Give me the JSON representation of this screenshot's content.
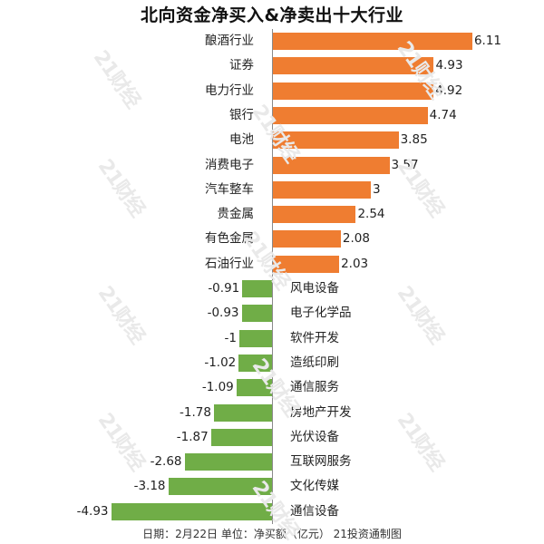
{
  "chart_data": {
    "type": "bar",
    "orientation": "horizontal",
    "title": "北向资金净买入&净卖出十大行业",
    "xlabel": "",
    "ylabel": "",
    "unit": "净买额（亿元）",
    "categories": [
      "酿酒行业",
      "证券",
      "电力行业",
      "银行",
      "电池",
      "消费电子",
      "汽车整车",
      "贵金属",
      "有色金属",
      "石油行业",
      "风电设备",
      "电子化学品",
      "软件开发",
      "造纸印刷",
      "通信服务",
      "房地产开发",
      "光伏设备",
      "互联网服务",
      "文化传媒",
      "通信设备"
    ],
    "values": [
      6.11,
      4.93,
      4.92,
      4.74,
      3.85,
      3.57,
      3,
      2.54,
      2.08,
      2.03,
      -0.91,
      -0.93,
      -1,
      -1.02,
      -1.09,
      -1.78,
      -1.87,
      -2.68,
      -3.18,
      -4.93
    ],
    "value_labels": [
      "6.11",
      "4.93",
      "4.92",
      "4.74",
      "3.85",
      "3.57",
      "3",
      "2.54",
      "2.08",
      "2.03",
      "-0.91",
      "-0.93",
      "-1",
      "-1.02",
      "-1.09",
      "-1.78",
      "-1.87",
      "-2.68",
      "-3.18",
      "-4.93"
    ],
    "series": [
      {
        "name": "净买入",
        "color": "#ef7d31"
      },
      {
        "name": "净卖出",
        "color": "#70ad47"
      }
    ],
    "grid": false,
    "legend": "none",
    "xlim": [
      -5,
      6.5
    ]
  },
  "header": {
    "title": "北向资金净买入&净卖出十大行业"
  },
  "footer": {
    "text": "日期：2月22日 单位：净买额（亿元） 21投资通制图"
  },
  "watermark": {
    "text": "21财经"
  },
  "colors": {
    "positive": "#ef7d31",
    "negative": "#70ad47",
    "axis": "#8a8a8a"
  }
}
